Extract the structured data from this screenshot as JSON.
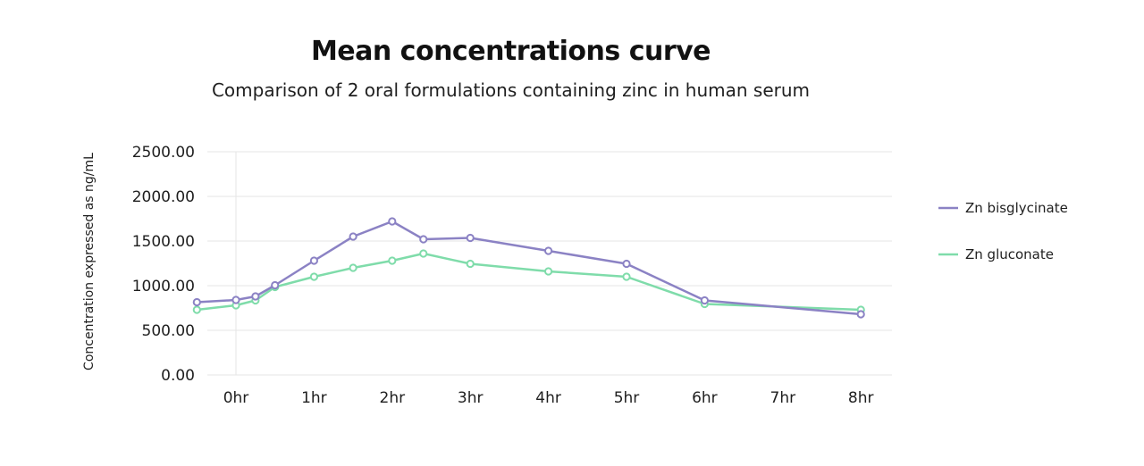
{
  "chart_data": {
    "type": "line",
    "title": "Mean concentrations curve",
    "subtitle": "Comparison of 2 oral formulations containing zinc in human serum",
    "xlabel": "",
    "ylabel": "Concentration expressed as ng/mL",
    "ylim": [
      0,
      2500
    ],
    "xlim": [
      -0.5,
      8
    ],
    "grid": true,
    "legend_position": "right",
    "x_ticks": [
      0,
      1,
      2,
      3,
      4,
      5,
      6,
      7,
      8
    ],
    "x_tick_labels": [
      "0hr",
      "1hr",
      "2hr",
      "3hr",
      "4hr",
      "5hr",
      "6hr",
      "7hr",
      "8hr"
    ],
    "y_ticks": [
      0,
      500,
      1000,
      1500,
      2000,
      2500
    ],
    "y_tick_labels": [
      "0.00",
      "500.00",
      "1000.00",
      "1500.00",
      "2000.00",
      "2500.00"
    ],
    "series": [
      {
        "name": "Zn bisglycinate",
        "color": "#8b82c4",
        "points": [
          {
            "x": -0.5,
            "y": 815
          },
          {
            "x": 0,
            "y": 840
          },
          {
            "x": 0.25,
            "y": 880
          },
          {
            "x": 0.5,
            "y": 1005
          },
          {
            "x": 1,
            "y": 1280
          },
          {
            "x": 1.5,
            "y": 1550
          },
          {
            "x": 2,
            "y": 1720
          },
          {
            "x": 2.4,
            "y": 1520
          },
          {
            "x": 3,
            "y": 1535
          },
          {
            "x": 4,
            "y": 1390
          },
          {
            "x": 5,
            "y": 1245
          },
          {
            "x": 6,
            "y": 835
          },
          {
            "x": 8,
            "y": 680
          }
        ]
      },
      {
        "name": "Zn gluconate",
        "color": "#7fdcaa",
        "points": [
          {
            "x": -0.5,
            "y": 730
          },
          {
            "x": 0,
            "y": 780
          },
          {
            "x": 0.25,
            "y": 835
          },
          {
            "x": 0.5,
            "y": 985
          },
          {
            "x": 1,
            "y": 1100
          },
          {
            "x": 1.5,
            "y": 1200
          },
          {
            "x": 2,
            "y": 1280
          },
          {
            "x": 2.4,
            "y": 1360
          },
          {
            "x": 3,
            "y": 1245
          },
          {
            "x": 4,
            "y": 1160
          },
          {
            "x": 5,
            "y": 1100
          },
          {
            "x": 6,
            "y": 795
          },
          {
            "x": 8,
            "y": 730
          }
        ]
      }
    ]
  }
}
